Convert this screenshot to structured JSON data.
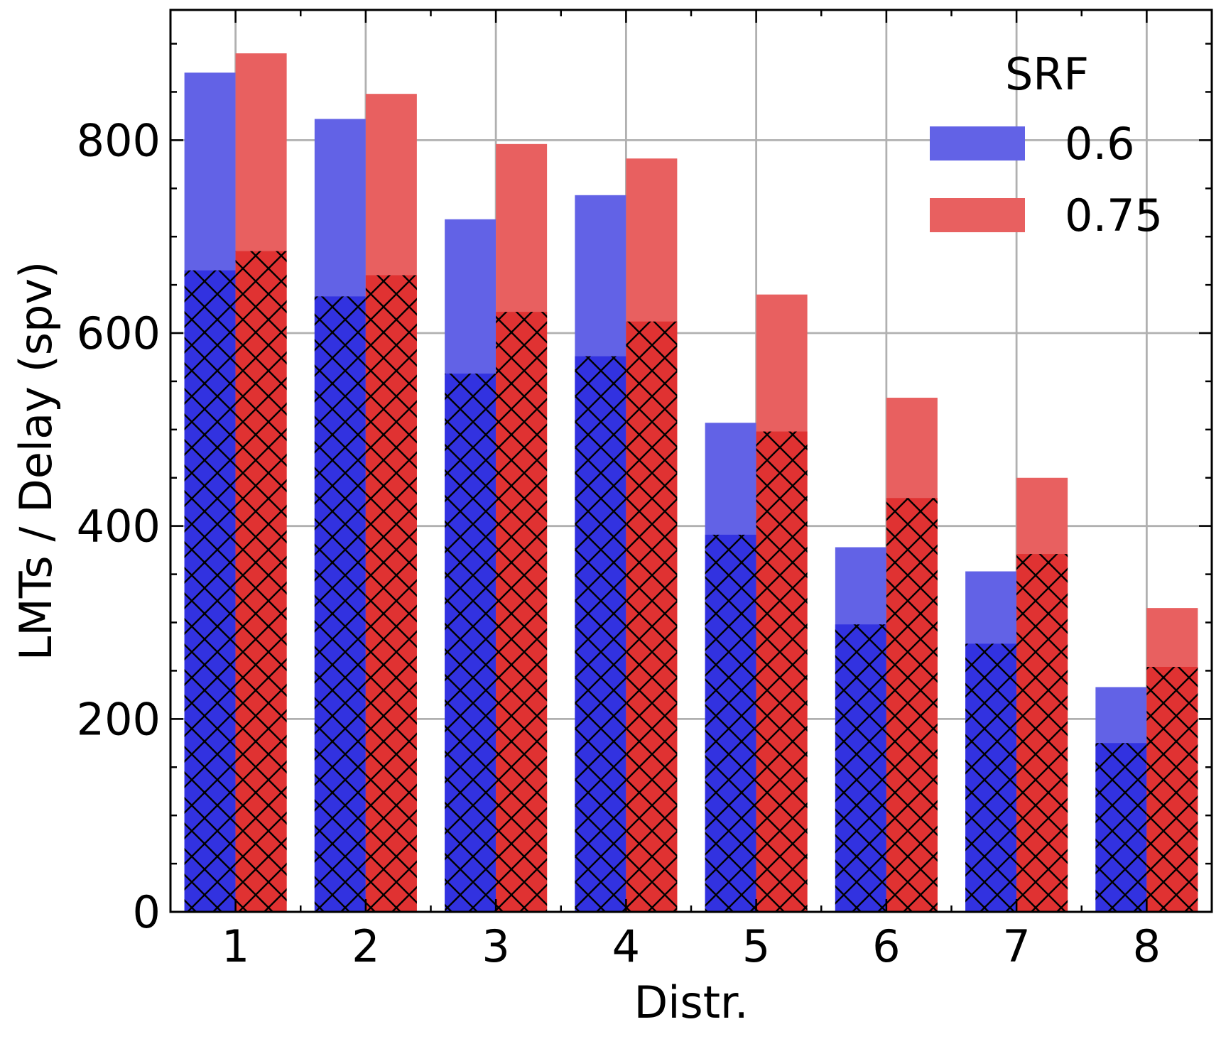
{
  "chart_data": {
    "type": "bar",
    "title": "",
    "xlabel": "Distr.",
    "ylabel": "LMTs / Delay (spv)",
    "categories": [
      "1",
      "2",
      "3",
      "4",
      "5",
      "6",
      "7",
      "8"
    ],
    "ylim": [
      0,
      935
    ],
    "yticks": [
      0,
      200,
      400,
      600,
      800
    ],
    "yticks_labels": [
      "0",
      "200",
      "400",
      "600",
      "800"
    ],
    "grid": true,
    "legend": {
      "title": "SRF",
      "position": "top-right"
    },
    "series": [
      {
        "name": "0.6",
        "color": "#6262e6",
        "hatch_color": "#3232e0",
        "values_total": [
          870,
          822,
          718,
          743,
          507,
          378,
          353,
          233
        ],
        "values_hatched": [
          665,
          638,
          558,
          576,
          391,
          298,
          278,
          175
        ]
      },
      {
        "name": "0.75",
        "color": "#e86060",
        "hatch_color": "#e03232",
        "values_total": [
          890,
          848,
          796,
          781,
          640,
          533,
          450,
          315
        ],
        "values_hatched": [
          685,
          660,
          622,
          612,
          498,
          429,
          371,
          254
        ]
      }
    ]
  }
}
